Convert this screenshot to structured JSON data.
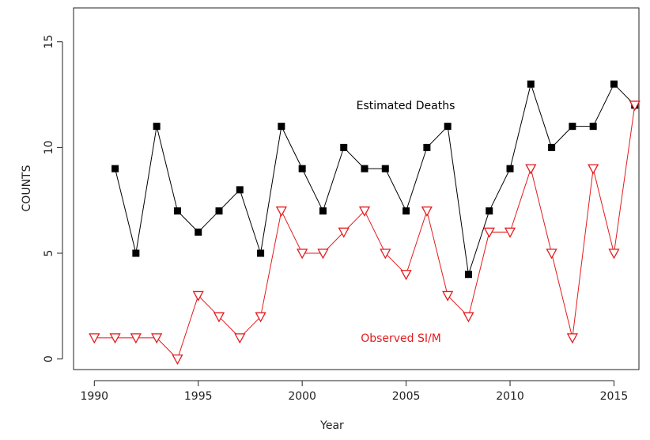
{
  "chart_data": {
    "type": "line",
    "xlabel": "Year",
    "ylabel": "COUNTS",
    "series": [
      {
        "name": "Estimated Deaths",
        "color": "#000000",
        "marker": "square",
        "x": [
          1991,
          1992,
          1993,
          1994,
          1995,
          1996,
          1997,
          1998,
          1999,
          2000,
          2001,
          2002,
          2003,
          2004,
          2005,
          2006,
          2007,
          2008,
          2009,
          2010,
          2011,
          2012,
          2013,
          2014,
          2015,
          2016
        ],
        "values": [
          9,
          5,
          11,
          7,
          6,
          7,
          8,
          5,
          11,
          9,
          7,
          10,
          9,
          9,
          7,
          10,
          11,
          4,
          7,
          9,
          13,
          10,
          11,
          11,
          13,
          12
        ]
      },
      {
        "name": "Observed SI/M",
        "color": "#e41a1c",
        "marker": "triangle-down",
        "x": [
          1990,
          1991,
          1992,
          1993,
          1994,
          1995,
          1996,
          1997,
          1998,
          1999,
          2000,
          2001,
          2002,
          2003,
          2004,
          2005,
          2006,
          2007,
          2008,
          2009,
          2010,
          2011,
          2012,
          2013,
          2014,
          2015,
          2016
        ],
        "values": [
          1,
          1,
          1,
          1,
          0,
          3,
          2,
          1,
          2,
          7,
          5,
          5,
          6,
          7,
          5,
          4,
          7,
          3,
          2,
          6,
          6,
          9,
          5,
          1,
          9,
          5,
          12
        ]
      }
    ],
    "xlim": [
      1989,
      2016.2
    ],
    "ylim": [
      -0.5,
      16.6
    ],
    "xticks": [
      1990,
      1995,
      2000,
      2005,
      2010,
      2015
    ],
    "yticks": [
      0,
      5,
      10,
      15
    ]
  }
}
